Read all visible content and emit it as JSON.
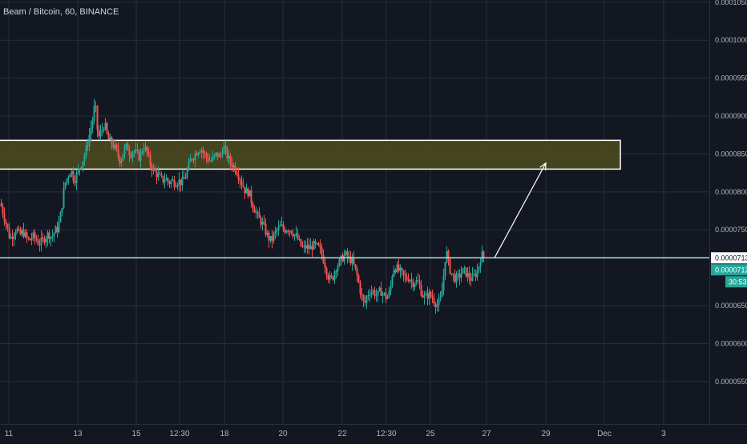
{
  "header": {
    "title": "Beam / Bitcoin, 60, BINANCE"
  },
  "colors": {
    "background": "#131722",
    "grid": "#2a2e39",
    "up": "#26a69a",
    "down": "#ef5350",
    "zone_fill": "#4d4d1f",
    "zone_stroke": "#ffffff",
    "hline": "#b2dfdb",
    "arrow": "#ffffff",
    "price_tag": "#26a69a"
  },
  "chart_data": {
    "type": "candlestick",
    "symbol": "Beam / Bitcoin",
    "interval": "60",
    "exchange": "BINANCE",
    "y_ticks": [
      "0.0001000",
      "0.0000950",
      "0.0000900",
      "0.0000850",
      "0.0000800",
      "0.0000750",
      "0.0000650",
      "0.0000600",
      "0.0000550"
    ],
    "y_top_tick": "0.0001050",
    "ylim": [
      5.15e-05,
      0.0001053
    ],
    "x_ticks": [
      "11",
      "13",
      "15",
      "12:30",
      "18",
      "20",
      "22",
      "12:30",
      "25",
      "27",
      "29",
      "Dec",
      "3"
    ],
    "price_path": [
      [
        0,
        7.85e-05
      ],
      [
        4,
        7.7e-05
      ],
      [
        8,
        7.55e-05
      ],
      [
        12,
        7.38e-05
      ],
      [
        16,
        7.45e-05
      ],
      [
        20,
        7.52e-05
      ],
      [
        24,
        7.42e-05
      ],
      [
        28,
        7.48e-05
      ],
      [
        32,
        7.4e-05
      ],
      [
        36,
        7.35e-05
      ],
      [
        40,
        7.42e-05
      ],
      [
        44,
        7.38e-05
      ],
      [
        48,
        7.32e-05
      ],
      [
        52,
        7.35e-05
      ],
      [
        56,
        7.4e-05
      ],
      [
        60,
        7.45e-05
      ],
      [
        64,
        7.4e-05
      ],
      [
        68,
        7.48e-05
      ],
      [
        72,
        7.52e-05
      ],
      [
        76,
        7.75e-05
      ],
      [
        80,
        8.1e-05
      ],
      [
        84,
        8.2e-05
      ],
      [
        88,
        8.3e-05
      ],
      [
        92,
        8.15e-05
      ],
      [
        96,
        8.25e-05
      ],
      [
        100,
        8.35e-05
      ],
      [
        104,
        8.45e-05
      ],
      [
        108,
        8.6e-05
      ],
      [
        112,
        8.8e-05
      ],
      [
        116,
        9e-05
      ],
      [
        118,
        9.2e-05
      ],
      [
        122,
        8.7e-05
      ],
      [
        126,
        8.8e-05
      ],
      [
        130,
        8.9e-05
      ],
      [
        134,
        8.7e-05
      ],
      [
        138,
        8.65e-05
      ],
      [
        142,
        8.6e-05
      ],
      [
        146,
        8.5e-05
      ],
      [
        150,
        8.4e-05
      ],
      [
        154,
        8.55e-05
      ],
      [
        158,
        8.6e-05
      ],
      [
        162,
        8.5e-05
      ],
      [
        166,
        8.55e-05
      ],
      [
        170,
        8.5e-05
      ],
      [
        174,
        8.45e-05
      ],
      [
        178,
        8.6e-05
      ],
      [
        182,
        8.55e-05
      ],
      [
        186,
        8.4e-05
      ],
      [
        190,
        8.3e-05
      ],
      [
        194,
        8.25e-05
      ],
      [
        198,
        8.2e-05
      ],
      [
        202,
        8.15e-05
      ],
      [
        206,
        8.18e-05
      ],
      [
        210,
        8.12e-05
      ],
      [
        214,
        8.15e-05
      ],
      [
        218,
        8.12e-05
      ],
      [
        222,
        8.15e-05
      ],
      [
        226,
        8.12e-05
      ],
      [
        230,
        8.18e-05
      ],
      [
        234,
        8.3e-05
      ],
      [
        238,
        8.45e-05
      ],
      [
        242,
        8.48e-05
      ],
      [
        246,
        8.55e-05
      ],
      [
        250,
        8.58e-05
      ],
      [
        254,
        8.5e-05
      ],
      [
        258,
        8.45e-05
      ],
      [
        262,
        8.4e-05
      ],
      [
        266,
        8.45e-05
      ],
      [
        270,
        8.5e-05
      ],
      [
        274,
        8.45e-05
      ],
      [
        278,
        8.6e-05
      ],
      [
        282,
        8.5e-05
      ],
      [
        286,
        8.4e-05
      ],
      [
        290,
        8.35e-05
      ],
      [
        294,
        8.3e-05
      ],
      [
        298,
        8.2e-05
      ],
      [
        302,
        8.1e-05
      ],
      [
        306,
        8e-05
      ],
      [
        310,
        8e-05
      ],
      [
        314,
        7.85e-05
      ],
      [
        318,
        7.75e-05
      ],
      [
        322,
        7.65e-05
      ],
      [
        326,
        7.6e-05
      ],
      [
        330,
        7.5e-05
      ],
      [
        334,
        7.4e-05
      ],
      [
        338,
        7.35e-05
      ],
      [
        342,
        7.45e-05
      ],
      [
        346,
        7.5e-05
      ],
      [
        350,
        7.55e-05
      ],
      [
        354,
        7.5e-05
      ],
      [
        358,
        7.52e-05
      ],
      [
        362,
        7.5e-05
      ],
      [
        366,
        7.45e-05
      ],
      [
        370,
        7.4e-05
      ],
      [
        374,
        7.3e-05
      ],
      [
        378,
        7.25e-05
      ],
      [
        382,
        7.28e-05
      ],
      [
        386,
        7.25e-05
      ],
      [
        390,
        7.3e-05
      ],
      [
        394,
        7.28e-05
      ],
      [
        398,
        7.25e-05
      ],
      [
        402,
        7.15e-05
      ],
      [
        406,
        7e-05
      ],
      [
        410,
        6.85e-05
      ],
      [
        414,
        6.85e-05
      ],
      [
        418,
        7e-05
      ],
      [
        422,
        7.05e-05
      ],
      [
        426,
        7.12e-05
      ],
      [
        430,
        7.18e-05
      ],
      [
        434,
        7.12e-05
      ],
      [
        438,
        7.1e-05
      ],
      [
        442,
        7e-05
      ],
      [
        446,
        6.85e-05
      ],
      [
        450,
        6.65e-05
      ],
      [
        454,
        6.5e-05
      ],
      [
        458,
        6.65e-05
      ],
      [
        462,
        6.7e-05
      ],
      [
        466,
        6.68e-05
      ],
      [
        470,
        6.62e-05
      ],
      [
        474,
        6.7e-05
      ],
      [
        478,
        6.65e-05
      ],
      [
        482,
        6.6e-05
      ],
      [
        486,
        6.68e-05
      ],
      [
        490,
        7e-05
      ],
      [
        494,
        7e-05
      ],
      [
        498,
        6.95e-05
      ],
      [
        502,
        6.9e-05
      ],
      [
        506,
        6.85e-05
      ],
      [
        510,
        6.88e-05
      ],
      [
        514,
        6.8e-05
      ],
      [
        518,
        6.82e-05
      ],
      [
        522,
        6.8e-05
      ],
      [
        526,
        6.65e-05
      ],
      [
        530,
        6.6e-05
      ],
      [
        534,
        6.65e-05
      ],
      [
        538,
        6.62e-05
      ],
      [
        542,
        6.55e-05
      ],
      [
        546,
        6.5e-05
      ],
      [
        550,
        6.6e-05
      ],
      [
        554,
        7e-05
      ],
      [
        556,
        7.25e-05
      ],
      [
        560,
        7e-05
      ],
      [
        564,
        6.9e-05
      ],
      [
        568,
        6.85e-05
      ],
      [
        572,
        6.88e-05
      ],
      [
        576,
        6.95e-05
      ],
      [
        580,
        6.95e-05
      ],
      [
        584,
        6.88e-05
      ],
      [
        588,
        6.85e-05
      ],
      [
        592,
        6.9e-05
      ],
      [
        596,
        6.98e-05
      ],
      [
        600,
        7.18e-05
      ],
      [
        604,
        7.12e-05
      ]
    ],
    "support_level": 7.13e-05,
    "resistance_zone": [
      8.3e-05,
      8.68e-05
    ],
    "projection_arrow": {
      "from_price": 7.13e-05,
      "to_price": 8.38e-05,
      "from_x": "27",
      "to_x": "29"
    },
    "current_price": "0.0000712",
    "level_label": "0.0000713",
    "countdown": "30:53",
    "grid": true
  }
}
